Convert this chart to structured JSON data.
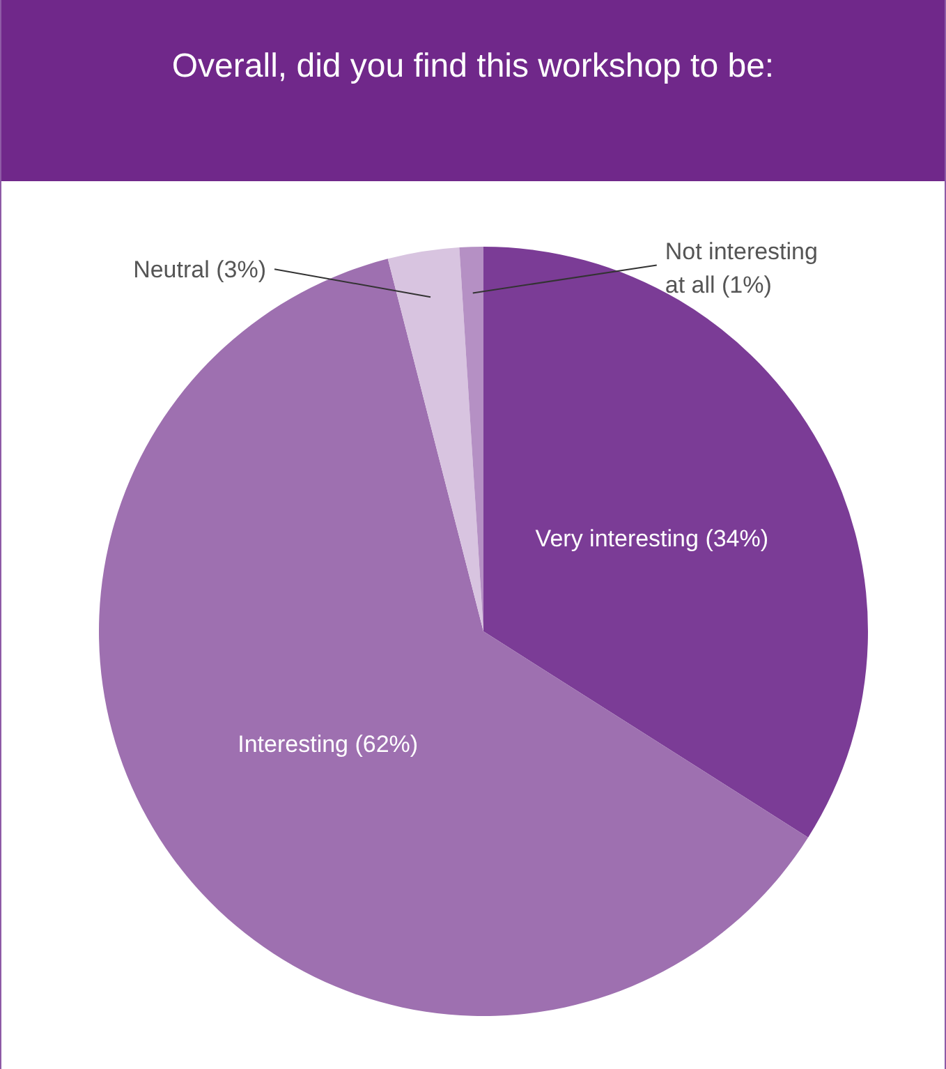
{
  "chart_data": {
    "type": "pie",
    "title": "Overall, did you find this workshop to be:",
    "categories": [
      "Very interesting",
      "Interesting",
      "Neutral",
      "Not interesting at all"
    ],
    "values": [
      34,
      62,
      3,
      1
    ],
    "value_labels": [
      "(34%)",
      "(62%)",
      "(3%)",
      "(1%)"
    ],
    "colors": [
      "#7b3c96",
      "#9e70b0",
      "#d8c4e0",
      "#b590c4"
    ]
  }
}
